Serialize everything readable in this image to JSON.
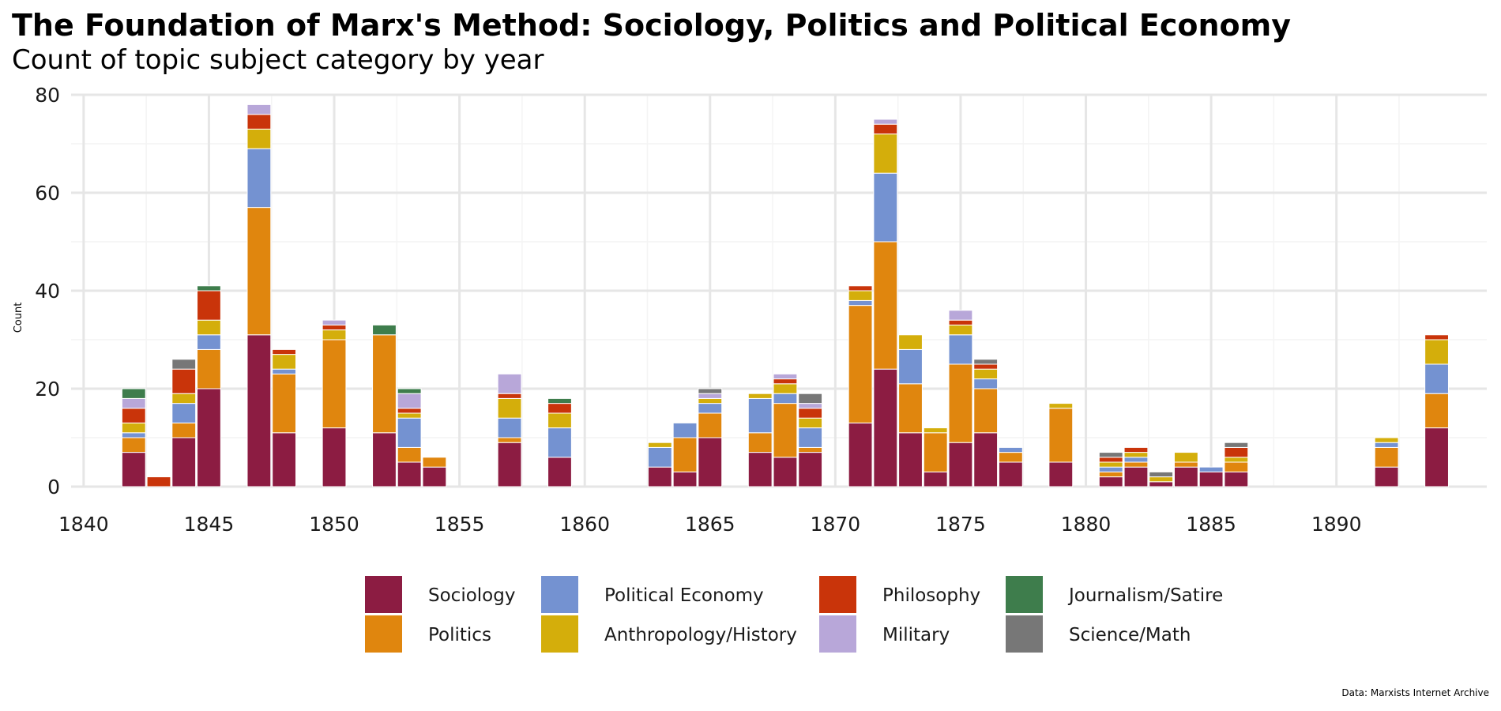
{
  "title": "The Foundation of Marx's Method: Sociology, Politics and Political Economy",
  "subtitle": "Count of topic subject category by year",
  "caption": "Data: Marxists Internet Archive",
  "chart_data": {
    "type": "bar",
    "stacked": true,
    "xlabel": "",
    "ylabel": "Count",
    "xlim": [
      1839.5,
      1896
    ],
    "ylim": [
      0,
      80
    ],
    "x_ticks": [
      1840,
      1845,
      1850,
      1855,
      1860,
      1865,
      1870,
      1875,
      1880,
      1885,
      1890
    ],
    "y_ticks": [
      0,
      20,
      40,
      60,
      80
    ],
    "grid": true,
    "legend_position": "bottom",
    "series": [
      {
        "name": "Sociology",
        "color": "#8C1C42",
        "points": [
          [
            1842,
            7
          ],
          [
            1844,
            10
          ],
          [
            1845,
            20
          ],
          [
            1847,
            31
          ],
          [
            1848,
            11
          ],
          [
            1850,
            12
          ],
          [
            1852,
            11
          ],
          [
            1853,
            5
          ],
          [
            1854,
            4
          ],
          [
            1857,
            9
          ],
          [
            1859,
            6
          ],
          [
            1863,
            4
          ],
          [
            1864,
            3
          ],
          [
            1865,
            10
          ],
          [
            1867,
            7
          ],
          [
            1868,
            6
          ],
          [
            1869,
            7
          ],
          [
            1871,
            13
          ],
          [
            1872,
            24
          ],
          [
            1873,
            11
          ],
          [
            1874,
            3
          ],
          [
            1875,
            9
          ],
          [
            1876,
            11
          ],
          [
            1877,
            5
          ],
          [
            1879,
            5
          ],
          [
            1881,
            2
          ],
          [
            1882,
            4
          ],
          [
            1883,
            1
          ],
          [
            1884,
            4
          ],
          [
            1885,
            3
          ],
          [
            1886,
            3
          ],
          [
            1892,
            4
          ],
          [
            1894,
            12
          ]
        ]
      },
      {
        "name": "Politics",
        "color": "#E0860E",
        "points": [
          [
            1842,
            3
          ],
          [
            1844,
            3
          ],
          [
            1845,
            8
          ],
          [
            1847,
            26
          ],
          [
            1848,
            12
          ],
          [
            1850,
            18
          ],
          [
            1852,
            20
          ],
          [
            1853,
            3
          ],
          [
            1854,
            2
          ],
          [
            1857,
            1
          ],
          [
            1864,
            7
          ],
          [
            1865,
            5
          ],
          [
            1867,
            4
          ],
          [
            1868,
            11
          ],
          [
            1869,
            1
          ],
          [
            1871,
            24
          ],
          [
            1872,
            26
          ],
          [
            1873,
            10
          ],
          [
            1874,
            8
          ],
          [
            1875,
            16
          ],
          [
            1876,
            9
          ],
          [
            1877,
            2
          ],
          [
            1879,
            11
          ],
          [
            1881,
            1
          ],
          [
            1882,
            1
          ],
          [
            1884,
            1
          ],
          [
            1886,
            2
          ],
          [
            1892,
            4
          ],
          [
            1894,
            7
          ]
        ]
      },
      {
        "name": "Political Economy",
        "color": "#7492D1",
        "points": [
          [
            1842,
            1
          ],
          [
            1844,
            4
          ],
          [
            1845,
            3
          ],
          [
            1847,
            12
          ],
          [
            1848,
            1
          ],
          [
            1853,
            6
          ],
          [
            1857,
            4
          ],
          [
            1859,
            6
          ],
          [
            1863,
            4
          ],
          [
            1864,
            3
          ],
          [
            1865,
            2
          ],
          [
            1867,
            7
          ],
          [
            1868,
            2
          ],
          [
            1869,
            4
          ],
          [
            1871,
            1
          ],
          [
            1872,
            14
          ],
          [
            1873,
            7
          ],
          [
            1875,
            6
          ],
          [
            1876,
            2
          ],
          [
            1877,
            1
          ],
          [
            1881,
            1
          ],
          [
            1882,
            1
          ],
          [
            1885,
            1
          ],
          [
            1892,
            1
          ],
          [
            1894,
            6
          ]
        ]
      },
      {
        "name": "Anthropology/History",
        "color": "#D4AE0B",
        "points": [
          [
            1842,
            2
          ],
          [
            1844,
            2
          ],
          [
            1845,
            3
          ],
          [
            1847,
            4
          ],
          [
            1848,
            3
          ],
          [
            1850,
            2
          ],
          [
            1853,
            1
          ],
          [
            1857,
            4
          ],
          [
            1859,
            3
          ],
          [
            1863,
            1
          ],
          [
            1865,
            1
          ],
          [
            1867,
            1
          ],
          [
            1868,
            2
          ],
          [
            1869,
            2
          ],
          [
            1871,
            2
          ],
          [
            1872,
            8
          ],
          [
            1873,
            3
          ],
          [
            1874,
            1
          ],
          [
            1875,
            2
          ],
          [
            1876,
            2
          ],
          [
            1879,
            1
          ],
          [
            1881,
            1
          ],
          [
            1882,
            1
          ],
          [
            1883,
            1
          ],
          [
            1884,
            2
          ],
          [
            1886,
            1
          ],
          [
            1892,
            1
          ],
          [
            1894,
            5
          ]
        ]
      },
      {
        "name": "Philosophy",
        "color": "#C9340A",
        "points": [
          [
            1842,
            3
          ],
          [
            1843,
            2
          ],
          [
            1844,
            5
          ],
          [
            1845,
            6
          ],
          [
            1847,
            3
          ],
          [
            1848,
            1
          ],
          [
            1850,
            1
          ],
          [
            1853,
            1
          ],
          [
            1857,
            1
          ],
          [
            1859,
            2
          ],
          [
            1868,
            1
          ],
          [
            1869,
            2
          ],
          [
            1871,
            1
          ],
          [
            1872,
            2
          ],
          [
            1875,
            1
          ],
          [
            1876,
            1
          ],
          [
            1881,
            1
          ],
          [
            1882,
            1
          ],
          [
            1886,
            2
          ],
          [
            1894,
            1
          ]
        ]
      },
      {
        "name": "Military",
        "color": "#B8A7D9",
        "points": [
          [
            1842,
            2
          ],
          [
            1847,
            2
          ],
          [
            1850,
            1
          ],
          [
            1853,
            3
          ],
          [
            1857,
            4
          ],
          [
            1865,
            1
          ],
          [
            1868,
            1
          ],
          [
            1869,
            1
          ],
          [
            1872,
            1
          ],
          [
            1875,
            2
          ]
        ]
      },
      {
        "name": "Journalism/Satire",
        "color": "#3E7D4C",
        "points": [
          [
            1842,
            2
          ],
          [
            1845,
            1
          ],
          [
            1852,
            2
          ],
          [
            1853,
            1
          ],
          [
            1859,
            1
          ]
        ]
      },
      {
        "name": "Science/Math",
        "color": "#777777",
        "points": [
          [
            1844,
            2
          ],
          [
            1865,
            1
          ],
          [
            1869,
            2
          ],
          [
            1876,
            1
          ],
          [
            1881,
            1
          ],
          [
            1883,
            1
          ],
          [
            1886,
            1
          ]
        ]
      }
    ]
  }
}
